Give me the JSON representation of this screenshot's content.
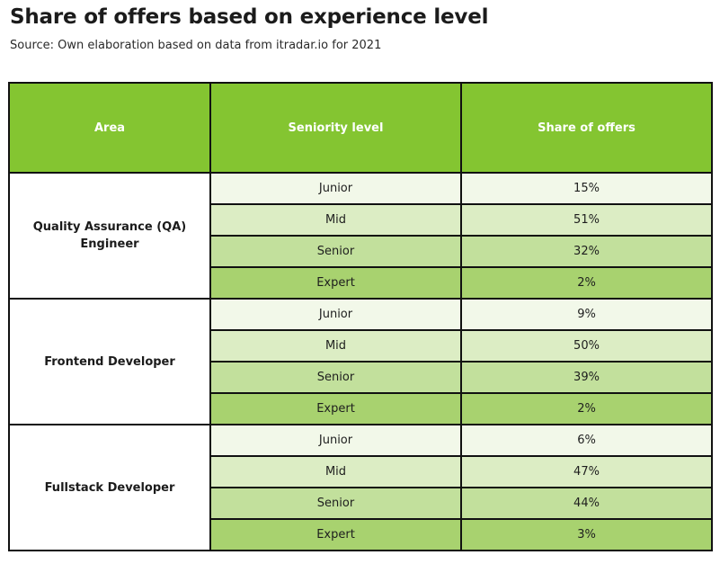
{
  "title": "Share of offers based on experience level",
  "subtitle": "Source: Own elaboration based on data from itradar.io for 2021",
  "colors": {
    "header_bg": "#84c531",
    "header_text": "#ffffff",
    "row_shades": [
      "#f2f8e9",
      "#dcedc4",
      "#c2e09c",
      "#a8d26f"
    ]
  },
  "chart_data": {
    "type": "table",
    "title": "Share of offers based on experience level",
    "subtitle": "Source: Own elaboration based on data from itradar.io for 2021",
    "columns": [
      "Area",
      "Seniority level",
      "Share of offers"
    ],
    "groups": [
      {
        "area": "Quality Assurance (QA) Engineer",
        "rows": [
          {
            "level": "Junior",
            "share": "15%"
          },
          {
            "level": "Mid",
            "share": "51%"
          },
          {
            "level": "Senior",
            "share": "32%"
          },
          {
            "level": "Expert",
            "share": "2%"
          }
        ]
      },
      {
        "area": "Frontend Developer",
        "rows": [
          {
            "level": "Junior",
            "share": "9%"
          },
          {
            "level": "Mid",
            "share": "50%"
          },
          {
            "level": "Senior",
            "share": "39%"
          },
          {
            "level": "Expert",
            "share": "2%"
          }
        ]
      },
      {
        "area": "Fullstack Developer",
        "rows": [
          {
            "level": "Junior",
            "share": "6%"
          },
          {
            "level": "Mid",
            "share": "47%"
          },
          {
            "level": "Senior",
            "share": "44%"
          },
          {
            "level": "Expert",
            "share": "3%"
          }
        ]
      }
    ]
  }
}
